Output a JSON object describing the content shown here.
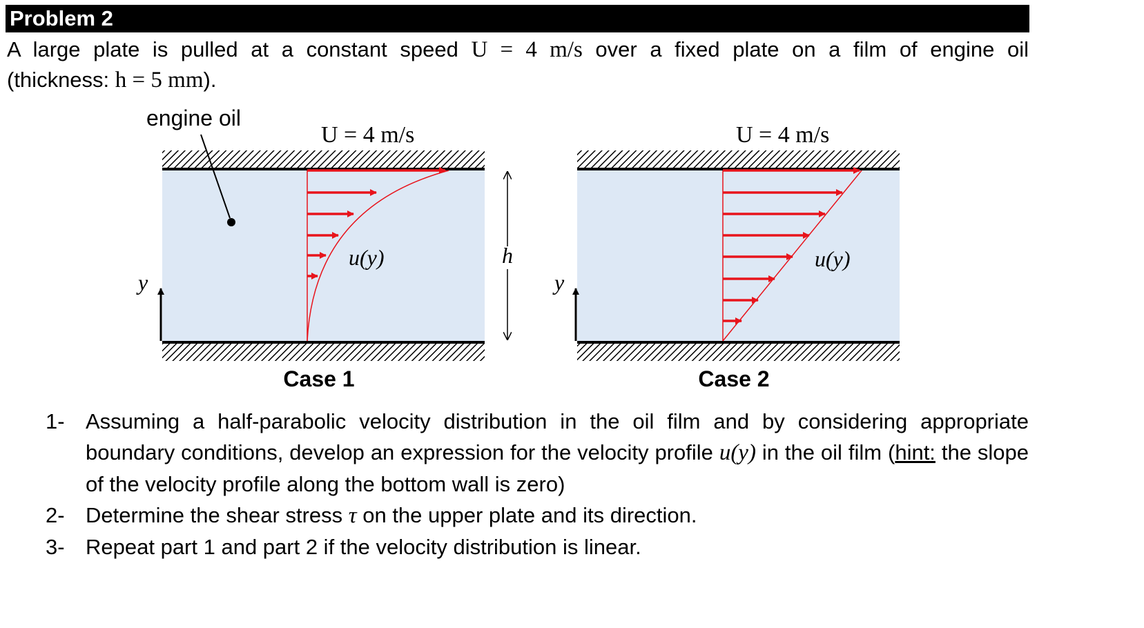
{
  "header": {
    "title": "Problem 2"
  },
  "intro": {
    "line1_text": "A large plate is pulled at a constant speed",
    "speed_expr": "U = 4 m/s",
    "line1_tail": "over a fixed plate on a film of engine oil",
    "line2_text": "(thickness:",
    "thickness_expr": "h = 5 mm",
    "line2_tail": ")."
  },
  "figure": {
    "oil_label": "engine oil",
    "case1": {
      "speed_label": "U = 4 m/s",
      "profile_label": "u(y)",
      "y_label": "y",
      "caption": "Case 1"
    },
    "case2": {
      "speed_label": "U = 4 m/s",
      "profile_label": "u(y)",
      "y_label": "y",
      "caption": "Case 2"
    },
    "gap_label": "h",
    "colors": {
      "oil": "#dde8f5",
      "arrows": "#e8141c",
      "wall": "#000000"
    }
  },
  "questions": [
    {
      "num": "1-",
      "text_a": "Assuming a half-parabolic velocity distribution in the oil film and by considering appropriate boundary conditions, develop an expression for the velocity profile",
      "expr": "u(y)",
      "text_b": "in the oil film (",
      "hint": "hint:",
      "text_c": " the slope of the velocity profile along the bottom wall is zero)"
    },
    {
      "num": "2-",
      "text_a": "Determine the shear stress",
      "expr": "τ",
      "text_b": "on the upper plate and its direction."
    },
    {
      "num": "3-",
      "text_a": "Repeat part 1 and part 2 if the velocity distribution is linear."
    }
  ]
}
